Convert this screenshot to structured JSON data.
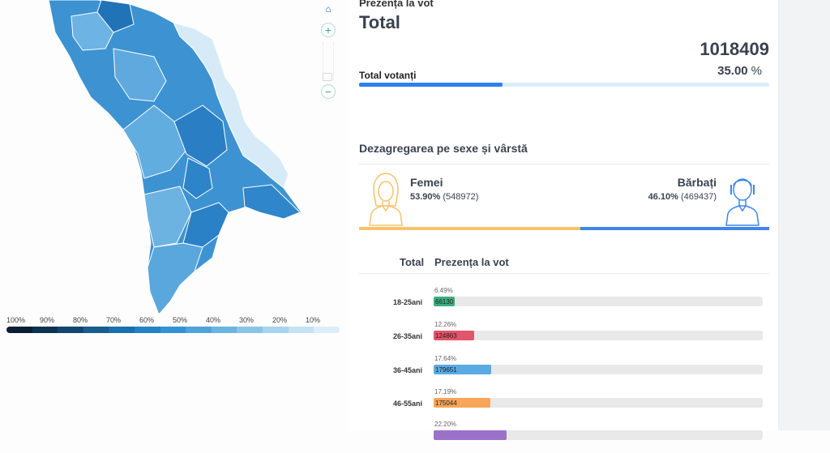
{
  "map": {
    "controls": {
      "home_icon": "home-icon",
      "plus": "+",
      "minus": "−"
    },
    "legend": {
      "labels": [
        "100%",
        "90%",
        "80%",
        "70%",
        "60%",
        "50%",
        "40%",
        "30%",
        "20%",
        "10%"
      ],
      "colors": [
        "#0a1f33",
        "#0e3350",
        "#13466e",
        "#185d90",
        "#1b6faf",
        "#2382c6",
        "#3193d4",
        "#4fa3da",
        "#6cb4e1",
        "#8ac5e8",
        "#a8d4ee",
        "#c4e2f3",
        "#dceef8"
      ]
    }
  },
  "header": {
    "subtitle": "Prezența la vot",
    "title": "Total"
  },
  "total": {
    "number": "1018409",
    "percent": "35.00",
    "percent_unit": "%",
    "label": "Total votanți",
    "fill_fraction": 0.35
  },
  "gender": {
    "section_title": "Dezagregarea pe sexe și vârstă",
    "female": {
      "label": "Femei",
      "percent": "53.90%",
      "count": "(548972)",
      "fraction": 0.539,
      "color": "#f8c26b"
    },
    "male": {
      "label": "Bărbați",
      "percent": "46.10%",
      "count": "(469437)",
      "fraction": 0.461,
      "color": "#3f86e6"
    }
  },
  "age": {
    "head_total": "Total",
    "head_title": "Prezența la vot",
    "rows": [
      {
        "label": "18-25ani",
        "percent": "6.49%",
        "count": "66130",
        "fraction": 0.065,
        "color": "#3dae7f"
      },
      {
        "label": "26-35ani",
        "percent": "12.26%",
        "count": "124863",
        "fraction": 0.123,
        "color": "#e2546a"
      },
      {
        "label": "36-45ani",
        "percent": "17.64%",
        "count": "179651",
        "fraction": 0.176,
        "color": "#5aaae3"
      },
      {
        "label": "46-55ani",
        "percent": "17.19%",
        "count": "175044",
        "fraction": 0.172,
        "color": "#f6a55a"
      },
      {
        "label": "",
        "percent": "22.20%",
        "count": "",
        "fraction": 0.222,
        "color": "#9b72c9"
      }
    ]
  }
}
